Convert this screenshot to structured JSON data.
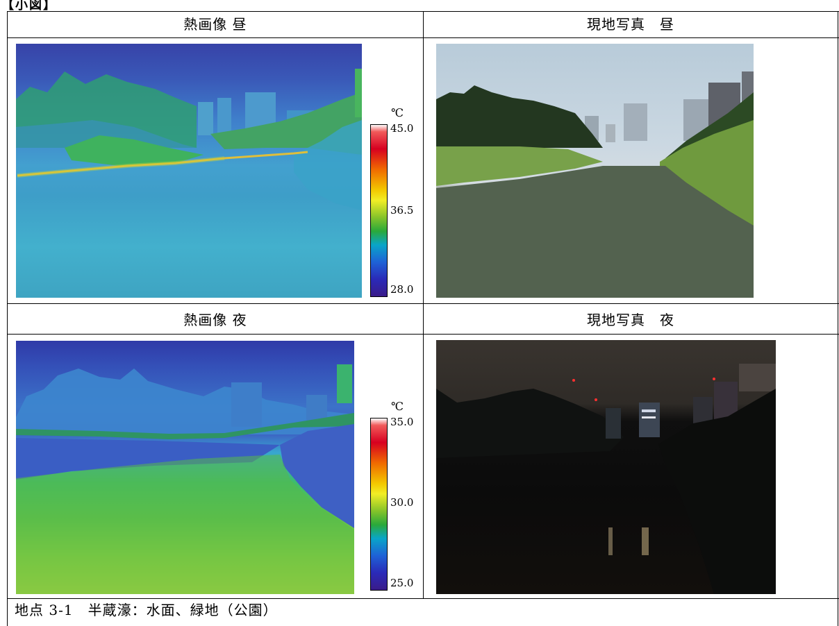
{
  "page_header_fragment": "【小図】",
  "cells": {
    "thermal_day_title": "熱画像 昼",
    "photo_day_title": "現地写真　昼",
    "thermal_night_title": "熱画像 夜",
    "photo_night_title": "現地写真　夜"
  },
  "scale_day": {
    "unit": "℃",
    "max": "45.0",
    "mid": "36.5",
    "min": "28.0"
  },
  "scale_night": {
    "unit": "℃",
    "max": "35.0",
    "mid": "30.0",
    "min": "25.0"
  },
  "caption": "地点 3-1　半蔵濠：水面、緑地（公園）",
  "colors": {
    "border": "#000000",
    "background": "#ffffff"
  }
}
